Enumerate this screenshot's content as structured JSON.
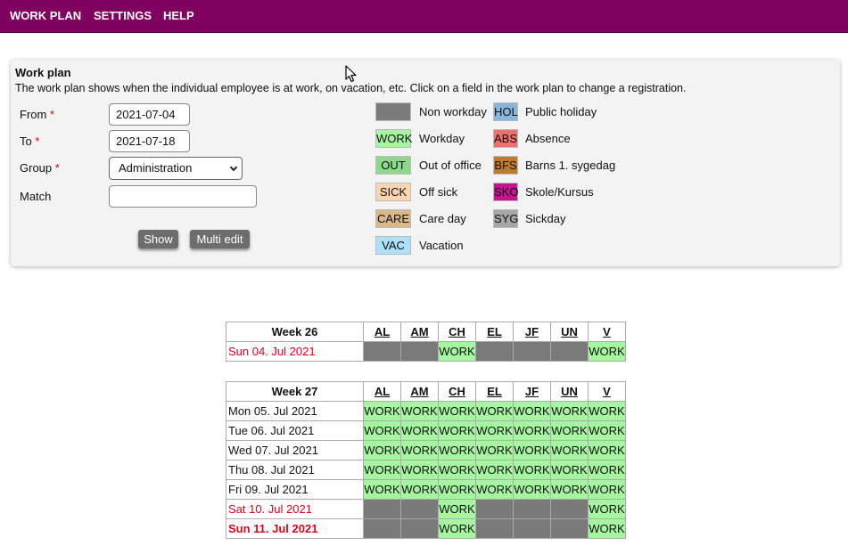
{
  "nav": [
    "WORK PLAN",
    "SETTINGS",
    "HELP"
  ],
  "panel": {
    "title": "Work plan",
    "description": "The work plan shows when the individual employee is at work, on vacation, etc. Click on a field in the work plan to change a registration.",
    "from_label": "From",
    "from_value": "2021-07-04",
    "to_label": "To",
    "to_value": "2021-07-18",
    "group_label": "Group",
    "group_value": "Administration",
    "match_label": "Match",
    "match_value": "",
    "show_button": "Show",
    "multi_edit_button": "Multi edit",
    "required_mark": "*"
  },
  "legend": [
    {
      "code": "",
      "label": "Non workday",
      "color": "#7a7a7a"
    },
    {
      "code": "WORK",
      "label": "Workday",
      "color": "#a6f5a0"
    },
    {
      "code": "OUT",
      "label": "Out of office",
      "color": "#8cd98c"
    },
    {
      "code": "SICK",
      "label": "Off sick",
      "color": "#f9d5b2"
    },
    {
      "code": "CARE",
      "label": "Care day",
      "color": "#d9b98a"
    },
    {
      "code": "VAC",
      "label": "Vacation",
      "color": "#aee0fa"
    },
    {
      "code": "HOL",
      "label": "Public holiday",
      "color": "#8ab6dc"
    },
    {
      "code": "ABS",
      "label": "Absence",
      "color": "#f07070"
    },
    {
      "code": "BFS",
      "label": "Barns 1. sygedag",
      "color": "#c07c2c"
    },
    {
      "code": "SKO",
      "label": "Skole/Kursus",
      "color": "#c0178f"
    },
    {
      "code": "SYG",
      "label": "Sickday",
      "color": "#a6a6a6"
    }
  ],
  "weeks": [
    {
      "title": "Week 26",
      "columns": [
        "AL",
        "AM",
        "CH",
        "EL",
        "JF",
        "UN",
        "V"
      ],
      "days": [
        {
          "date": "Sun 04. Jul 2021",
          "style": "red",
          "cells": [
            "",
            "",
            "WORK",
            "",
            "",
            "",
            "WORK"
          ]
        }
      ]
    },
    {
      "title": "Week 27",
      "columns": [
        "AL",
        "AM",
        "CH",
        "EL",
        "JF",
        "UN",
        "V"
      ],
      "days": [
        {
          "date": "Mon 05. Jul 2021",
          "style": "",
          "cells": [
            "WORK",
            "WORK",
            "WORK",
            "WORK",
            "WORK",
            "WORK",
            "WORK"
          ]
        },
        {
          "date": "Tue 06. Jul 2021",
          "style": "",
          "cells": [
            "WORK",
            "WORK",
            "WORK",
            "WORK",
            "WORK",
            "WORK",
            "WORK"
          ]
        },
        {
          "date": "Wed 07. Jul 2021",
          "style": "",
          "cells": [
            "WORK",
            "WORK",
            "WORK",
            "WORK",
            "WORK",
            "WORK",
            "WORK"
          ]
        },
        {
          "date": "Thu 08. Jul 2021",
          "style": "",
          "cells": [
            "WORK",
            "WORK",
            "WORK",
            "WORK",
            "WORK",
            "WORK",
            "WORK"
          ]
        },
        {
          "date": "Fri 09. Jul 2021",
          "style": "",
          "cells": [
            "WORK",
            "WORK",
            "WORK",
            "WORK",
            "WORK",
            "WORK",
            "WORK"
          ]
        },
        {
          "date": "Sat 10. Jul 2021",
          "style": "red",
          "cells": [
            "",
            "",
            "WORK",
            "",
            "",
            "",
            "WORK"
          ]
        },
        {
          "date": "Sun 11. Jul 2021",
          "style": "red-bold",
          "cells": [
            "",
            "",
            "WORK",
            "",
            "",
            "",
            "WORK"
          ]
        }
      ]
    }
  ]
}
